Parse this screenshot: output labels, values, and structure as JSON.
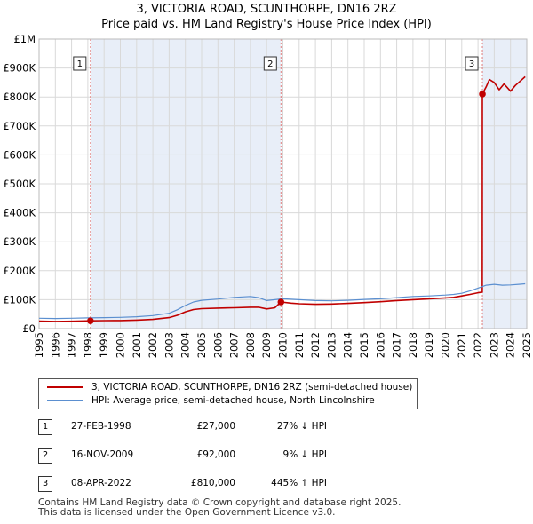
{
  "title_line1": "3, VICTORIA ROAD, SCUNTHORPE, DN16 2RZ",
  "title_line2": "Price paid vs. HM Land Registry's House Price Index (HPI)",
  "legend": {
    "property_label": "3, VICTORIA ROAD, SCUNTHORPE, DN16 2RZ (semi-detached house)",
    "hpi_label": "HPI: Average price, semi-detached house, North Lincolnshire"
  },
  "colors": {
    "property": "#c00000",
    "hpi": "#5b8fd0",
    "shade": "#e8eef8",
    "grid": "#d9d9d9",
    "vline": "#e07b7b"
  },
  "sales": [
    {
      "num": "1",
      "date": "27-FEB-1998",
      "price": "£27,000",
      "hpi": "27% ↓ HPI"
    },
    {
      "num": "2",
      "date": "16-NOV-2009",
      "price": "£92,000",
      "hpi": "9% ↓ HPI"
    },
    {
      "num": "3",
      "date": "08-APR-2022",
      "price": "£810,000",
      "hpi": "445% ↑ HPI"
    }
  ],
  "footer_line1": "Contains HM Land Registry data © Crown copyright and database right 2025.",
  "footer_line2": "This data is licensed under the Open Government Licence v3.0.",
  "chart_data": {
    "type": "line",
    "title": "3, VICTORIA ROAD, SCUNTHORPE, DN16 2RZ",
    "subtitle": "Price paid vs. HM Land Registry's House Price Index (HPI)",
    "xlim": [
      1995,
      2025
    ],
    "ylim": [
      0,
      1000000
    ],
    "x_ticks": [
      "1995",
      "1996",
      "1997",
      "1998",
      "1999",
      "2000",
      "2001",
      "2002",
      "2003",
      "2004",
      "2005",
      "2006",
      "2007",
      "2008",
      "2009",
      "2010",
      "2011",
      "2012",
      "2013",
      "2014",
      "2015",
      "2016",
      "2017",
      "2018",
      "2019",
      "2020",
      "2021",
      "2022",
      "2023",
      "2024",
      "2025"
    ],
    "y_ticks": [
      {
        "value": 0,
        "label": "£0"
      },
      {
        "value": 100000,
        "label": "£100K"
      },
      {
        "value": 200000,
        "label": "£200K"
      },
      {
        "value": 300000,
        "label": "£300K"
      },
      {
        "value": 400000,
        "label": "£400K"
      },
      {
        "value": 500000,
        "label": "£500K"
      },
      {
        "value": 600000,
        "label": "£600K"
      },
      {
        "value": 700000,
        "label": "£700K"
      },
      {
        "value": 800000,
        "label": "£800K"
      },
      {
        "value": 900000,
        "label": "£900K"
      },
      {
        "value": 1000000,
        "label": "£1M"
      }
    ],
    "grid": true,
    "shaded_ranges": [
      [
        1998.16,
        2009.88
      ],
      [
        2022.27,
        2025
      ]
    ],
    "sale_markers": [
      {
        "label": "1",
        "x": 1998.16,
        "y": 27000
      },
      {
        "label": "2",
        "x": 2009.88,
        "y": 92000
      },
      {
        "label": "3",
        "x": 2022.27,
        "y": 810000
      }
    ],
    "series": [
      {
        "name": "3, VICTORIA ROAD, SCUNTHORPE, DN16 2RZ (semi-detached house)",
        "x": [
          1995.0,
          1996.0,
          1997.0,
          1998.16,
          1999.0,
          2000.0,
          2001.0,
          2002.0,
          2003.0,
          2003.5,
          2004.0,
          2004.5,
          2005.0,
          2006.0,
          2007.0,
          2008.0,
          2008.5,
          2009.0,
          2009.5,
          2009.88,
          2010.5,
          2011.0,
          2012.0,
          2013.0,
          2014.0,
          2015.0,
          2016.0,
          2017.0,
          2018.0,
          2019.0,
          2020.0,
          2020.5,
          2021.0,
          2021.5,
          2022.0,
          2022.26,
          2022.27,
          2022.5,
          2022.7,
          2023.0,
          2023.3,
          2023.6,
          2024.0,
          2024.3,
          2024.6,
          2024.9
        ],
        "y": [
          26000,
          25000,
          25500,
          27000,
          27500,
          28000,
          29500,
          32000,
          38000,
          46000,
          58000,
          66000,
          69000,
          71000,
          72000,
          74000,
          74000,
          68000,
          72000,
          92000,
          88000,
          86000,
          84000,
          85000,
          87000,
          90000,
          93000,
          97000,
          100000,
          103000,
          106000,
          108000,
          113000,
          118000,
          124000,
          126000,
          810000,
          835000,
          860000,
          850000,
          825000,
          845000,
          820000,
          840000,
          855000,
          870000
        ]
      },
      {
        "name": "HPI: Average price, semi-detached house, North Lincolnshire",
        "x": [
          1995.0,
          1996.0,
          1997.0,
          1998.0,
          1999.0,
          2000.0,
          2001.0,
          2002.0,
          2003.0,
          2003.5,
          2004.0,
          2004.5,
          2005.0,
          2006.0,
          2007.0,
          2008.0,
          2008.5,
          2009.0,
          2009.5,
          2010.0,
          2011.0,
          2012.0,
          2013.0,
          2014.0,
          2015.0,
          2016.0,
          2017.0,
          2018.0,
          2019.0,
          2020.0,
          2020.5,
          2021.0,
          2021.5,
          2022.0,
          2022.5,
          2023.0,
          2023.5,
          2024.0,
          2024.5,
          2024.9
        ],
        "y": [
          36000,
          35000,
          36000,
          37000,
          38000,
          39000,
          41000,
          45000,
          53000,
          65000,
          80000,
          92000,
          98000,
          102000,
          108000,
          111000,
          107000,
          97000,
          100000,
          103000,
          100000,
          97000,
          96000,
          98000,
          101000,
          103000,
          107000,
          111000,
          113000,
          116000,
          118000,
          122000,
          130000,
          140000,
          150000,
          153000,
          150000,
          151000,
          153000,
          155000
        ]
      }
    ]
  }
}
